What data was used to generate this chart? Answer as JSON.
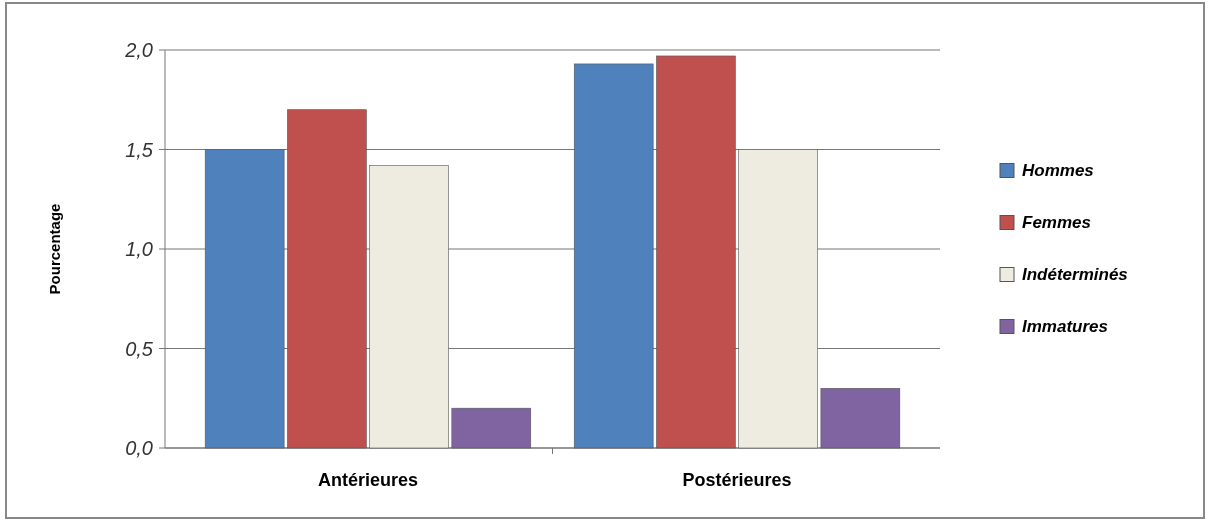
{
  "chart_data": {
    "type": "bar",
    "ylabel": "Pourcentage",
    "categories": [
      "Antérieures",
      "Postérieures"
    ],
    "series": [
      {
        "name": "Hommes",
        "color": "#4f81bd",
        "values": [
          1.5,
          1.93
        ]
      },
      {
        "name": "Femmes",
        "color": "#c0504d",
        "values": [
          1.7,
          1.97
        ]
      },
      {
        "name": "Indéterminés",
        "color": "#eeece1",
        "values": [
          1.42,
          1.5
        ]
      },
      {
        "name": "Immatures",
        "color": "#8064a2",
        "values": [
          0.2,
          0.3
        ]
      }
    ],
    "ylim": [
      0,
      2
    ],
    "yticks": [
      {
        "value": 0,
        "label": "0,0"
      },
      {
        "value": 0.5,
        "label": "0,5"
      },
      {
        "value": 1,
        "label": "1,0"
      },
      {
        "value": 1.5,
        "label": "1,5"
      },
      {
        "value": 2,
        "label": "2,0"
      }
    ],
    "grid": "y",
    "legend": "right"
  }
}
